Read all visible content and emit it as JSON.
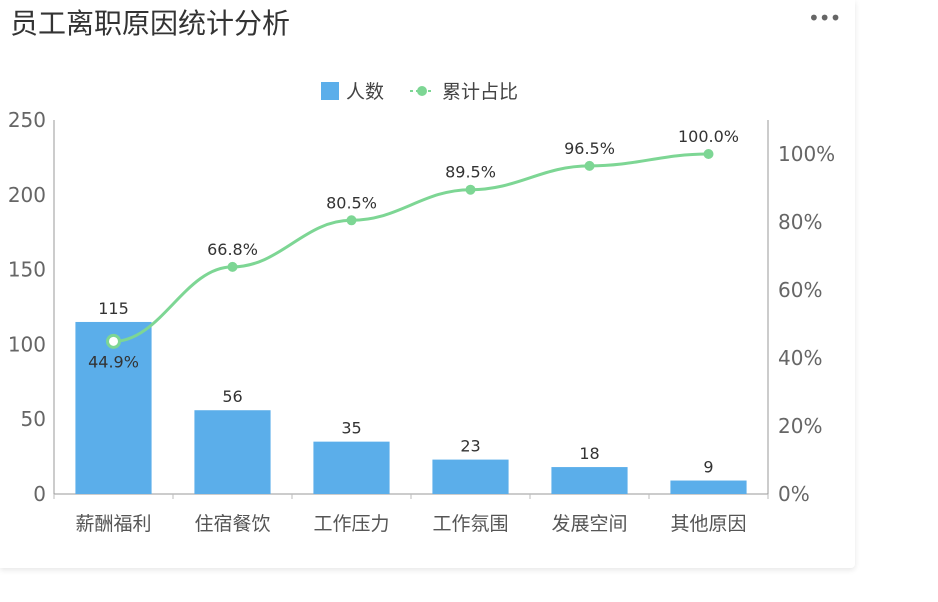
{
  "panel": {
    "title": "员工离职原因统计分析",
    "menu_icon": "more-horizontal-icon"
  },
  "chart_data": {
    "type": "bar",
    "categories": [
      "薪酬福利",
      "住宿餐饮",
      "工作压力",
      "工作氛围",
      "发展空间",
      "其他原因"
    ],
    "series": [
      {
        "name": "人数",
        "type": "bar",
        "axis": "left",
        "color": "#5BAEEA",
        "values": [
          115,
          56,
          35,
          23,
          18,
          9
        ]
      },
      {
        "name": "累计占比",
        "type": "line",
        "axis": "right",
        "color": "#7DD694",
        "values": [
          44.9,
          66.8,
          80.5,
          89.5,
          96.5,
          100.0
        ],
        "labels": [
          "44.9%",
          "66.8%",
          "80.5%",
          "89.5%",
          "96.5%",
          "100.0%"
        ]
      }
    ],
    "y_left": {
      "min": 0,
      "max": 250,
      "ticks": [
        0,
        50,
        100,
        150,
        200,
        250
      ]
    },
    "y_right": {
      "min": 0,
      "max": 100,
      "ticks": [
        "0%",
        "20%",
        "40%",
        "60%",
        "80%",
        "100%"
      ]
    },
    "legend_position": "top-center",
    "grid": false
  }
}
